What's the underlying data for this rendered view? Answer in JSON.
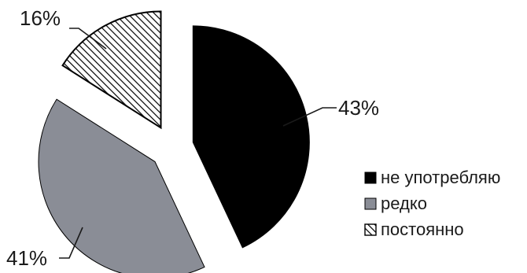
{
  "chart_data": {
    "type": "pie",
    "slices": [
      {
        "label": "не употребляю",
        "value": 43,
        "display": "43%",
        "fill": "solid-black",
        "color": "#000000"
      },
      {
        "label": "редко",
        "value": 41,
        "display": "41%",
        "fill": "solid-gray",
        "color": "#8a8d96"
      },
      {
        "label": "постоянно",
        "value": 16,
        "display": "16%",
        "fill": "diagonal-hatch",
        "color": "#ffffff"
      }
    ],
    "exploded": true,
    "legend": {
      "position": "right"
    }
  }
}
